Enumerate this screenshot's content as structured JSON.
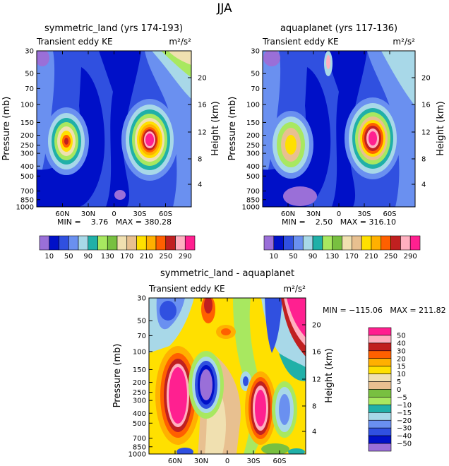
{
  "figure_title": "JJA",
  "colors": {
    "c_m50": "#9a6fd8",
    "c_m40": "#0010c8",
    "c_m30": "#3050e0",
    "c_m20": "#6a90f0",
    "c_m15": "#a8d8e8",
    "c_m10": "#20b0a8",
    "c_m5": "#a8e860",
    "c_0": "#78c040",
    "c_5": "#f0e0b0",
    "c_10": "#e8c090",
    "c_15": "#ffe000",
    "c_20": "#ffb000",
    "c_30": "#ff6000",
    "c_40": "#c02020",
    "c_50": "#ffb0c0",
    "c_60": "#ff2090"
  },
  "chart_data": [
    {
      "type": "contour",
      "title": "symmetric_land (yrs 174-193)",
      "subtitle_left": "Transient eddy KE",
      "subtitle_right": "m²/s²",
      "ylabel": "Pressure (mb)",
      "ylabel_right": "Height (km)",
      "x_ticks": [
        "60N",
        "30N",
        "0",
        "30S",
        "60S"
      ],
      "y_ticks": [
        "30",
        "50",
        "70",
        "100",
        "150",
        "200",
        "250",
        "300",
        "400",
        "500",
        "700",
        "850",
        "1000"
      ],
      "y_ticks_right": [
        "20",
        "16",
        "12",
        "8",
        "4"
      ],
      "min": "3.76",
      "max": "380.28",
      "stats_text": "MIN =    3.76   MAX = 380.28",
      "colorbar_labels": [
        "10",
        "50",
        "90",
        "130",
        "170",
        "210",
        "250",
        "290"
      ],
      "features": [
        {
          "name": "nh-jet-maximum",
          "lat": 65,
          "pressure_mb": 250,
          "peak_value": 250
        },
        {
          "name": "sh-jet-maximum",
          "lat": -42,
          "pressure_mb": 250,
          "peak_value": 380.28
        }
      ]
    },
    {
      "type": "contour",
      "title": "aquaplanet (yrs 117-136)",
      "subtitle_left": "Transient eddy KE",
      "subtitle_right": "m²/s²",
      "ylabel": "Pressure (mb)",
      "ylabel_right": "Height (km)",
      "x_ticks": [
        "60N",
        "30N",
        "0",
        "30S",
        "60S"
      ],
      "y_ticks": [
        "30",
        "50",
        "70",
        "100",
        "150",
        "200",
        "250",
        "300",
        "400",
        "500",
        "700",
        "850",
        "1000"
      ],
      "y_ticks_right": [
        "20",
        "16",
        "12",
        "8",
        "4"
      ],
      "min": "2.50",
      "max": "316.10",
      "stats_text": "MIN =    2.50   MAX = 316.10",
      "colorbar_labels": [
        "10",
        "50",
        "90",
        "130",
        "170",
        "210",
        "250",
        "290"
      ],
      "features": [
        {
          "name": "nh-jet-maximum",
          "lat": 62,
          "pressure_mb": 250,
          "peak_value": 170
        },
        {
          "name": "sh-jet-maximum",
          "lat": -42,
          "pressure_mb": 250,
          "peak_value": 316.1
        }
      ]
    },
    {
      "type": "contour",
      "title": "symmetric_land - aquaplanet",
      "subtitle_left": "Transient eddy KE",
      "subtitle_right": "m²/s²",
      "ylabel": "Pressure (mb)",
      "ylabel_right": "Height (km)",
      "x_ticks": [
        "60N",
        "30N",
        "0",
        "30S",
        "60S"
      ],
      "y_ticks": [
        "30",
        "50",
        "70",
        "100",
        "150",
        "200",
        "250",
        "300",
        "400",
        "500",
        "700",
        "850",
        "1000"
      ],
      "y_ticks_right": [
        "20",
        "16",
        "12",
        "8",
        "4"
      ],
      "min": "-115.06",
      "max": "211.82",
      "stats_text": "MIN = −115.06   MAX = 211.82",
      "colorbar_labels": [
        "50",
        "40",
        "30",
        "20",
        "15",
        "10",
        "5",
        "0",
        "−5",
        "−10",
        "−15",
        "−20",
        "−30",
        "−40",
        "−50"
      ],
      "features": [
        {
          "name": "positive-max-nh",
          "lat": 70,
          "pressure_mb": 250,
          "peak_value": 211.82
        },
        {
          "name": "negative-min-nh",
          "lat": 38,
          "pressure_mb": 200,
          "peak_value": -115.06
        },
        {
          "name": "positive-max-sh",
          "lat": -40,
          "pressure_mb": 300,
          "peak_value": 60
        }
      ]
    }
  ]
}
